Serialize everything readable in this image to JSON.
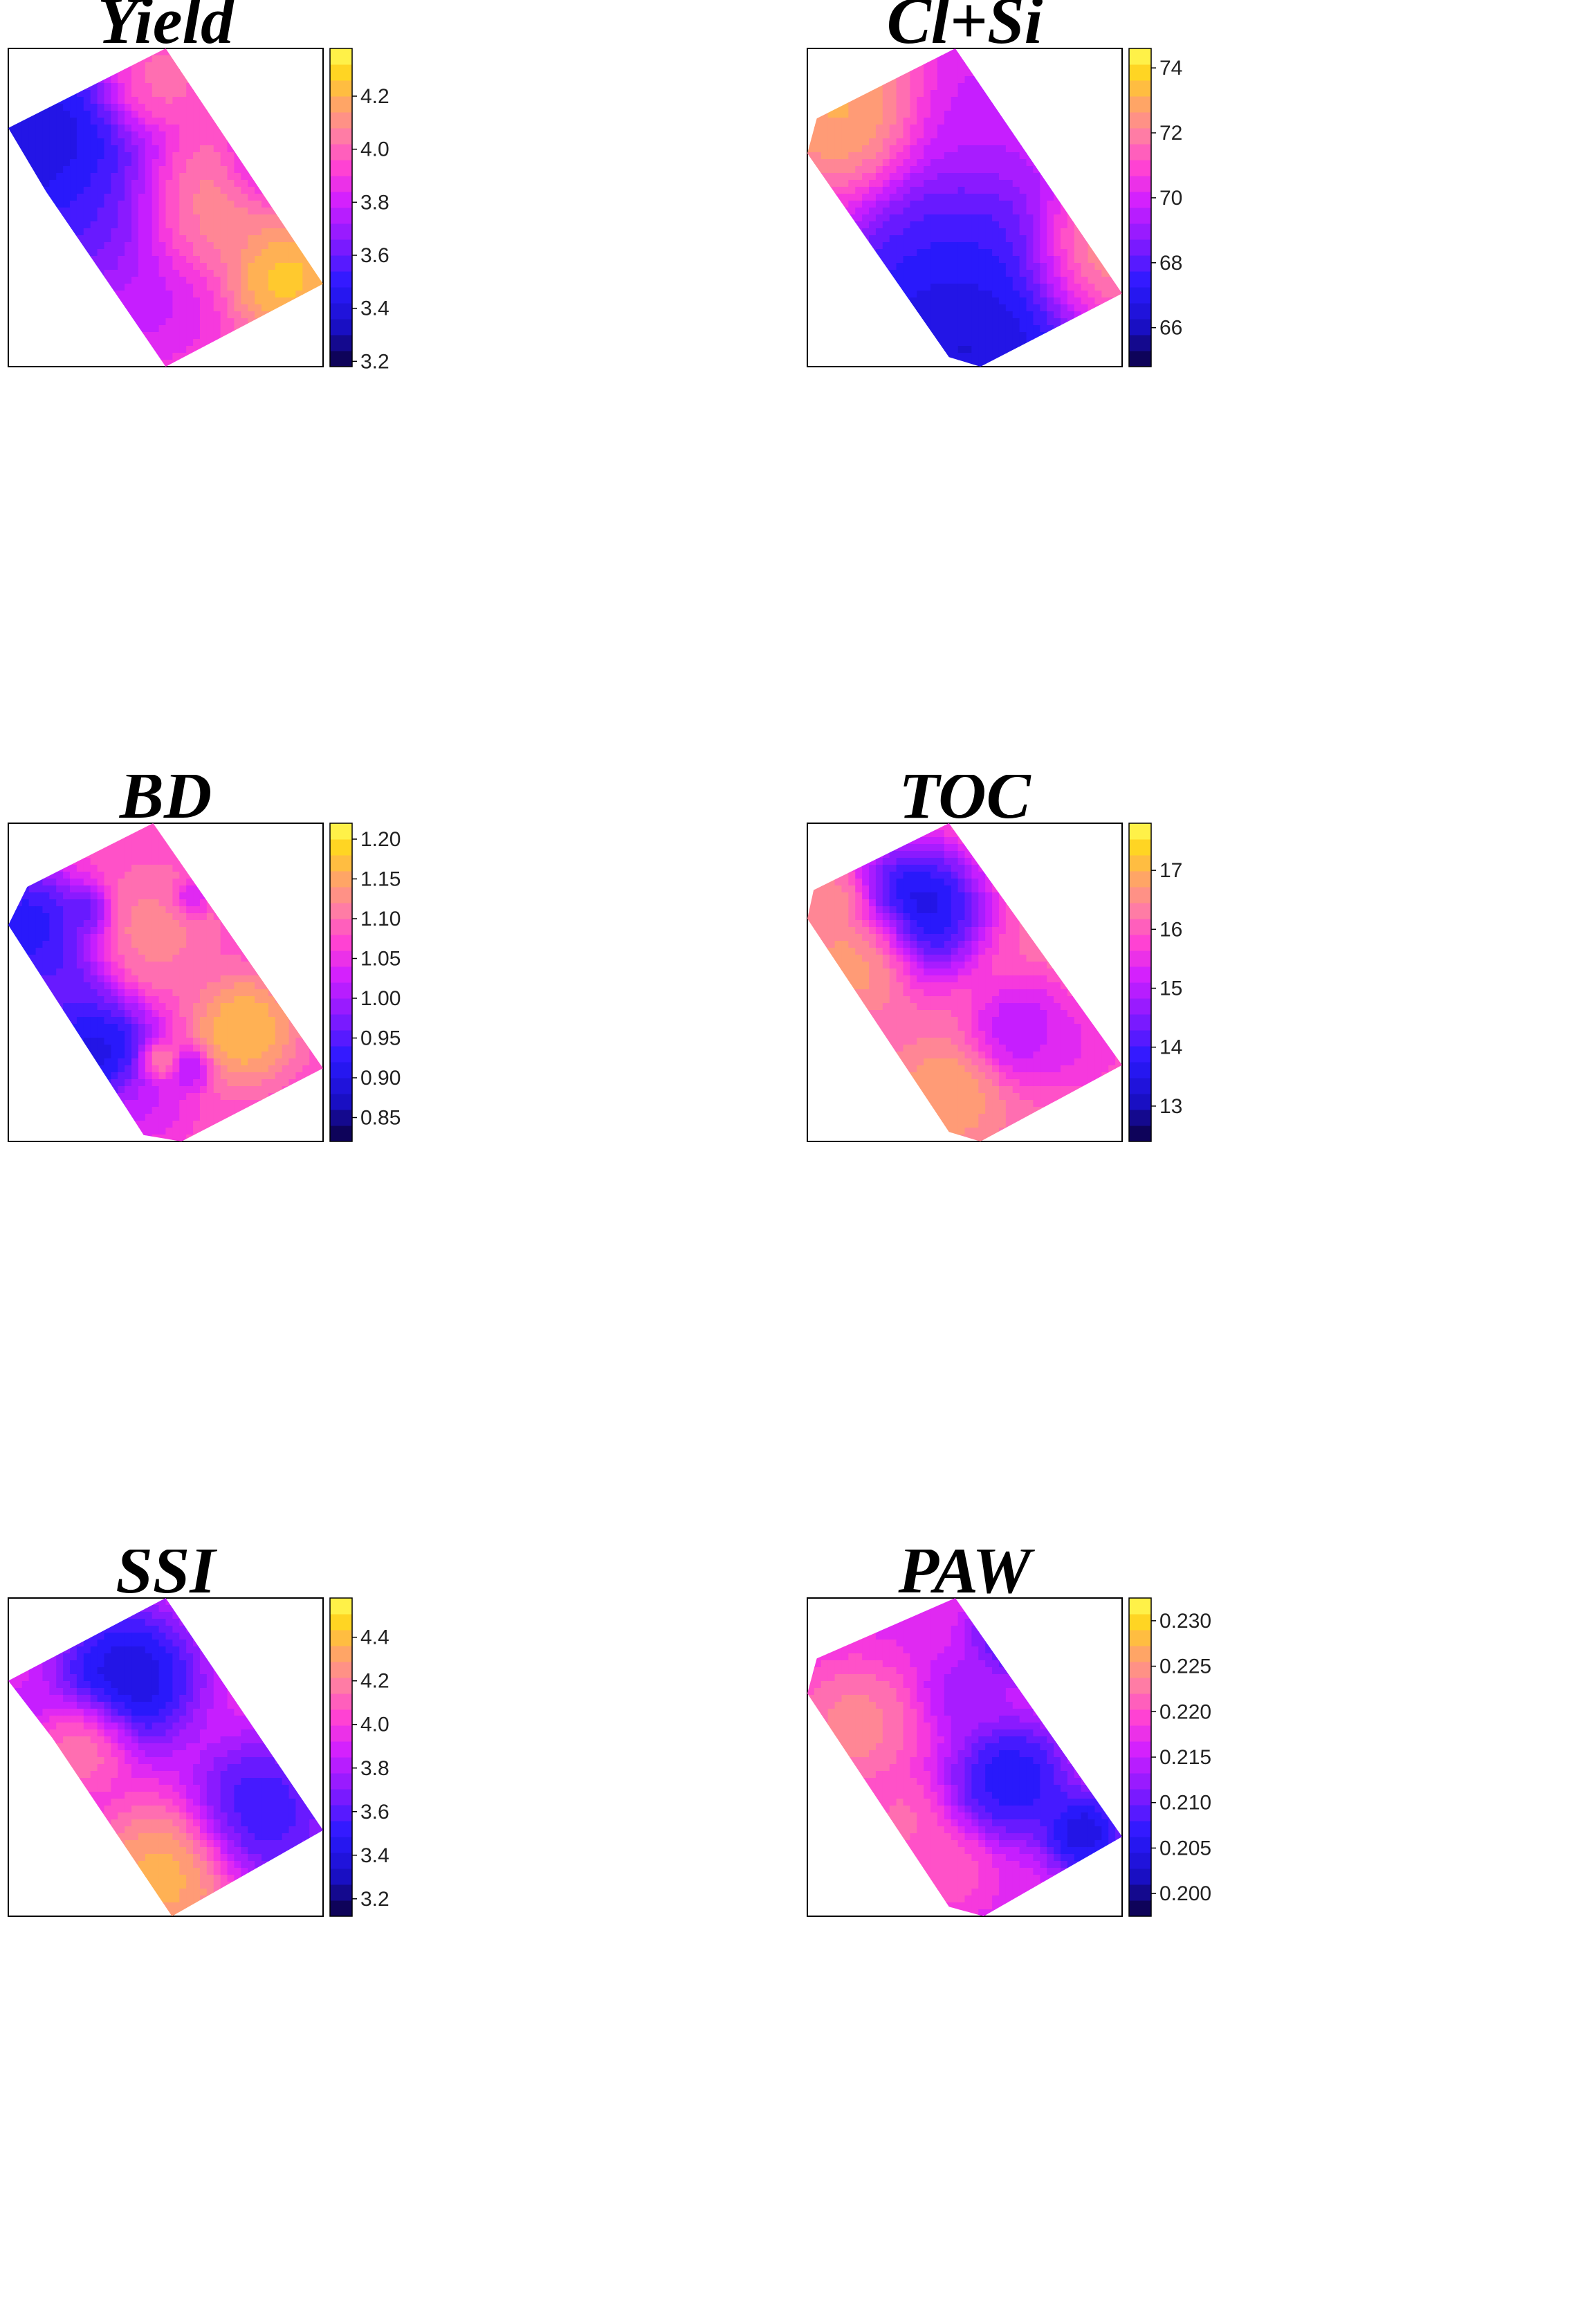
{
  "chart_data": [
    {
      "type": "heatmap",
      "title": "Yield",
      "legend_ticks": [
        "3.2",
        "3.4",
        "3.6",
        "3.8",
        "4.0",
        "4.2"
      ],
      "tick_values": [
        3.2,
        3.4,
        3.6,
        3.8,
        4.0,
        4.2
      ],
      "range": [
        3.18,
        4.38
      ],
      "colorscale": "blue-magenta-yellow",
      "legend": "right",
      "shape": [
        [
          0.0,
          0.25
        ],
        [
          0.5,
          0.0
        ],
        [
          1.0,
          0.74
        ],
        [
          0.5,
          1.0
        ],
        [
          0.12,
          0.45
        ]
      ],
      "blobs": [
        {
          "x": 0.09,
          "y": 0.32,
          "v": 3.2,
          "r": 0.28
        },
        {
          "x": 0.28,
          "y": 0.55,
          "v": 3.55,
          "r": 0.2
        },
        {
          "x": 0.45,
          "y": 0.8,
          "v": 3.75,
          "r": 0.15
        },
        {
          "x": 0.88,
          "y": 0.72,
          "v": 4.35,
          "r": 0.13
        },
        {
          "x": 0.6,
          "y": 0.5,
          "v": 4.15,
          "r": 0.17
        },
        {
          "x": 0.45,
          "y": 0.12,
          "v": 4.1,
          "r": 0.12
        },
        {
          "x": 0.8,
          "y": 0.36,
          "v": 3.75,
          "r": 0.09
        }
      ],
      "base": 3.95
    },
    {
      "type": "heatmap",
      "title": "Cl+Si",
      "legend_ticks": [
        "66",
        "68",
        "70",
        "72",
        "74"
      ],
      "tick_values": [
        66,
        68,
        70,
        72,
        74
      ],
      "range": [
        64.8,
        74.6
      ],
      "colorscale": "blue-magenta-yellow",
      "legend": "right",
      "shape": [
        [
          0.03,
          0.22
        ],
        [
          0.47,
          0.0
        ],
        [
          1.0,
          0.77
        ],
        [
          0.55,
          1.0
        ],
        [
          0.45,
          0.97
        ],
        [
          0.0,
          0.33
        ]
      ],
      "blobs": [
        {
          "x": 0.5,
          "y": 0.9,
          "v": 65.0,
          "r": 0.33
        },
        {
          "x": 0.5,
          "y": 0.6,
          "v": 67.5,
          "r": 0.22
        },
        {
          "x": 0.12,
          "y": 0.2,
          "v": 73.8,
          "r": 0.2
        },
        {
          "x": 0.92,
          "y": 0.65,
          "v": 73.5,
          "r": 0.18
        },
        {
          "x": 0.55,
          "y": 0.25,
          "v": 69.5,
          "r": 0.2
        }
      ],
      "base": 70.5
    },
    {
      "type": "heatmap",
      "title": "BD",
      "legend_ticks": [
        "0.85",
        "0.90",
        "0.95",
        "1.00",
        "1.05",
        "1.10",
        "1.15",
        "1.20"
      ],
      "tick_values": [
        0.85,
        0.9,
        0.95,
        1.0,
        1.05,
        1.1,
        1.15,
        1.2
      ],
      "range": [
        0.82,
        1.22
      ],
      "colorscale": "blue-magenta-yellow",
      "legend": "right",
      "shape": [
        [
          0.06,
          0.2
        ],
        [
          0.46,
          0.0
        ],
        [
          1.0,
          0.77
        ],
        [
          0.55,
          1.0
        ],
        [
          0.43,
          0.98
        ],
        [
          0.0,
          0.32
        ]
      ],
      "blobs": [
        {
          "x": 0.05,
          "y": 0.33,
          "v": 0.86,
          "r": 0.15
        },
        {
          "x": 0.27,
          "y": 0.72,
          "v": 0.84,
          "r": 0.15
        },
        {
          "x": 0.16,
          "y": 0.5,
          "v": 0.93,
          "r": 0.13
        },
        {
          "x": 0.25,
          "y": 0.28,
          "v": 0.92,
          "r": 0.06
        },
        {
          "x": 0.75,
          "y": 0.65,
          "v": 1.2,
          "r": 0.12
        },
        {
          "x": 0.45,
          "y": 0.35,
          "v": 1.13,
          "r": 0.14
        },
        {
          "x": 0.58,
          "y": 0.77,
          "v": 0.98,
          "r": 0.05
        },
        {
          "x": 0.58,
          "y": 0.24,
          "v": 0.99,
          "r": 0.04
        },
        {
          "x": 0.48,
          "y": 0.75,
          "v": 1.16,
          "r": 0.05
        },
        {
          "x": 0.44,
          "y": 0.88,
          "v": 1.02,
          "r": 0.1
        }
      ],
      "base": 1.08
    },
    {
      "type": "heatmap",
      "title": "TOC",
      "legend_ticks": [
        "13",
        "14",
        "15",
        "16",
        "17"
      ],
      "tick_values": [
        13,
        14,
        15,
        16,
        17
      ],
      "range": [
        12.4,
        17.8
      ],
      "colorscale": "blue-magenta-yellow",
      "legend": "right",
      "shape": [
        [
          0.02,
          0.21
        ],
        [
          0.45,
          0.0
        ],
        [
          1.0,
          0.76
        ],
        [
          0.55,
          1.0
        ],
        [
          0.45,
          0.97
        ],
        [
          0.0,
          0.3
        ]
      ],
      "blobs": [
        {
          "x": 0.35,
          "y": 0.27,
          "v": 12.5,
          "r": 0.16
        },
        {
          "x": 0.68,
          "y": 0.65,
          "v": 14.6,
          "r": 0.12
        },
        {
          "x": 0.2,
          "y": 0.4,
          "v": 17.3,
          "r": 0.12
        },
        {
          "x": 0.45,
          "y": 0.85,
          "v": 17.0,
          "r": 0.12
        },
        {
          "x": 0.85,
          "y": 0.7,
          "v": 15.3,
          "r": 0.12
        },
        {
          "x": 0.1,
          "y": 0.25,
          "v": 16.8,
          "r": 0.08
        }
      ],
      "base": 16.2
    },
    {
      "type": "heatmap",
      "title": "SSI",
      "legend_ticks": [
        "3.2",
        "3.4",
        "3.6",
        "3.8",
        "4.0",
        "4.2",
        "4.4"
      ],
      "tick_values": [
        3.2,
        3.4,
        3.6,
        3.8,
        4.0,
        4.2,
        4.4
      ],
      "range": [
        3.12,
        4.58
      ],
      "colorscale": "blue-magenta-yellow",
      "legend": "right",
      "shape": [
        [
          0.0,
          0.26
        ],
        [
          0.5,
          0.0
        ],
        [
          1.0,
          0.73
        ],
        [
          0.52,
          1.0
        ],
        [
          0.14,
          0.44
        ]
      ],
      "blobs": [
        {
          "x": 0.38,
          "y": 0.25,
          "v": 3.2,
          "r": 0.17
        },
        {
          "x": 0.8,
          "y": 0.67,
          "v": 3.4,
          "r": 0.17
        },
        {
          "x": 0.5,
          "y": 0.87,
          "v": 4.5,
          "r": 0.17
        },
        {
          "x": 0.25,
          "y": 0.45,
          "v": 4.3,
          "r": 0.11
        },
        {
          "x": 0.06,
          "y": 0.35,
          "v": 3.85,
          "r": 0.07
        }
      ],
      "base": 3.95
    },
    {
      "type": "heatmap",
      "title": "PAW",
      "legend_ticks": [
        "0.200",
        "0.205",
        "0.210",
        "0.215",
        "0.220",
        "0.225",
        "0.230"
      ],
      "tick_values": [
        0.2,
        0.205,
        0.21,
        0.215,
        0.22,
        0.225,
        0.23
      ],
      "range": [
        0.1975,
        0.2325
      ],
      "colorscale": "blue-magenta-yellow",
      "legend": "right",
      "shape": [
        [
          0.03,
          0.19
        ],
        [
          0.47,
          0.0
        ],
        [
          1.0,
          0.75
        ],
        [
          0.56,
          1.0
        ],
        [
          0.45,
          0.97
        ],
        [
          0.0,
          0.3
        ]
      ],
      "blobs": [
        {
          "x": 0.65,
          "y": 0.57,
          "v": 0.202,
          "r": 0.14
        },
        {
          "x": 0.88,
          "y": 0.74,
          "v": 0.2,
          "r": 0.1
        },
        {
          "x": 0.65,
          "y": 0.12,
          "v": 0.205,
          "r": 0.1
        },
        {
          "x": 0.15,
          "y": 0.4,
          "v": 0.226,
          "r": 0.15
        },
        {
          "x": 0.3,
          "y": 0.7,
          "v": 0.223,
          "r": 0.1
        },
        {
          "x": 0.5,
          "y": 0.3,
          "v": 0.212,
          "r": 0.1
        },
        {
          "x": 0.45,
          "y": 0.85,
          "v": 0.222,
          "r": 0.1
        }
      ],
      "base": 0.217
    }
  ]
}
